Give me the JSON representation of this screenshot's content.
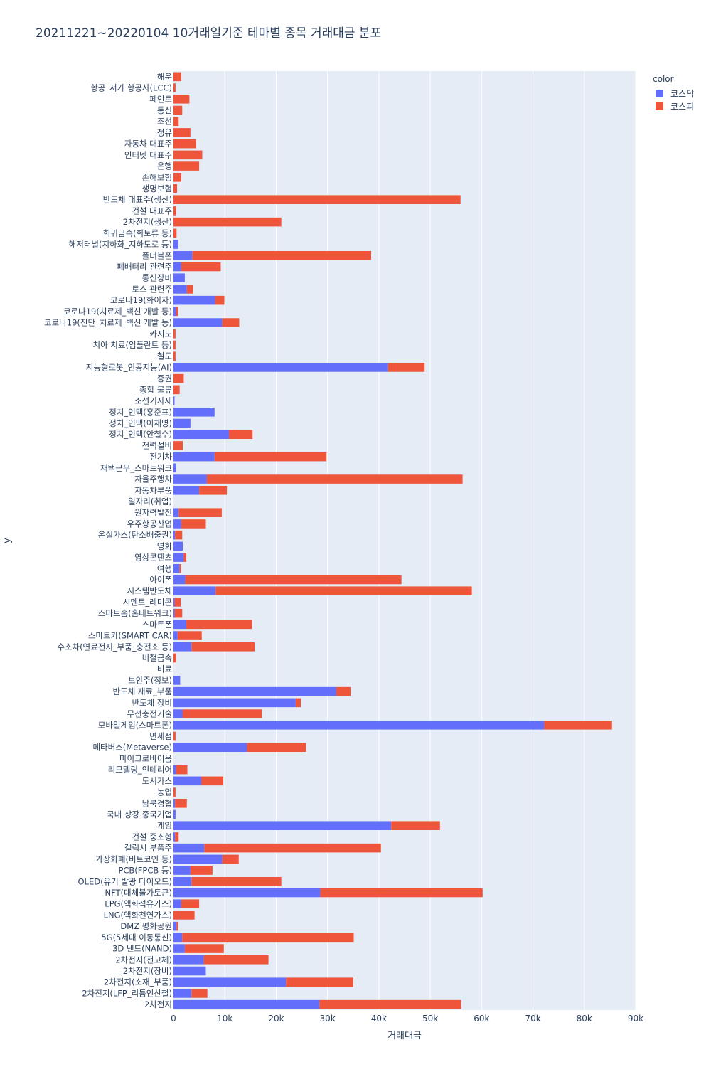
{
  "chart_data": {
    "type": "bar",
    "orientation": "horizontal",
    "barmode": "stack",
    "title": "20211221~20220104 10거래일기준 테마별 종목 거래대금 분포",
    "xlabel": "거래대금",
    "ylabel": "y",
    "xlim": [
      0,
      90000
    ],
    "x_ticks": [
      "0",
      "10k",
      "20k",
      "30k",
      "40k",
      "50k",
      "60k",
      "70k",
      "80k",
      "90k"
    ],
    "legend_title": "color",
    "legend_position": "top-right",
    "grid": true,
    "colors": {
      "코스닥": "#636efa",
      "코스피": "#ef553b",
      "background": "#e5ecf6"
    },
    "categories": [
      "해운",
      "항공_저가 항공사(LCC)",
      "페인트",
      "통신",
      "조선",
      "정유",
      "자동차 대표주",
      "인터넷 대표주",
      "은행",
      "손해보험",
      "생명보험",
      "반도체 대표주(생산)",
      "건설 대표주",
      "2차전지(생산)",
      "희귀금속(희토류 등)",
      "해저터널(지하화_지하도로 등)",
      "폴더블폰",
      "폐배터리 관련주",
      "통신장비",
      "토스 관련주",
      "코로나19(화이자)",
      "코로나19(치료제_백신 개발 등)",
      "코로나19(진단_치료제_백신 개발 등)",
      "카지노",
      "치아 치료(임플란트 등)",
      "철도",
      "지능형로봇_인공지능(AI)",
      "증권",
      "종합 물류",
      "조선기자재",
      "정치_인맥(홍준표)",
      "정치_인맥(이재명)",
      "정치_인맥(안철수)",
      "전력설비",
      "전기차",
      "재택근무_스마트워크",
      "자율주행차",
      "자동차부품",
      "일자리(취업)",
      "원자력발전",
      "우주항공산업",
      "온실가스(탄소배출권)",
      "영화",
      "영상콘텐츠",
      "여행",
      "아이폰",
      "시스템반도체",
      "시멘트_레미콘",
      "스마트홈(홈네트워크)",
      "스마트폰",
      "스마트카(SMART CAR)",
      "수소차(연료전지_부품_충전소 등)",
      "비철금속",
      "비료",
      "보안주(정보)",
      "반도체 재료_부품",
      "반도체 장비",
      "무선충전기술",
      "모바일게임(스마트폰)",
      "면세점",
      "메타버스(Metaverse)",
      "마이크로바이옴",
      "리모델링_인테리어",
      "도시가스",
      "농업",
      "남북경협",
      "국내 상장 중국기업",
      "게임",
      "건설 중소형",
      "갤럭시 부품주",
      "가상화폐(비트코인 등)",
      "PCB(FPCB 등)",
      "OLED(유기 발광 다이오드)",
      "NFT(대체불가토큰)",
      "LPG(액화석유가스)",
      "LNG(액화천연가스)",
      "DMZ 평화공원",
      "5G(5세대 이동통신)",
      "3D 낸드(NAND)",
      "2차전지(전고체)",
      "2차전지(장비)",
      "2차전지(소재_부품)",
      "2차전지(LFP_리튬인산철)",
      "2차전지"
    ],
    "series": [
      {
        "name": "코스닥",
        "values": [
          0,
          0,
          0,
          0,
          0,
          0,
          0,
          0,
          0,
          0,
          0,
          0,
          0,
          0,
          0,
          900,
          3700,
          1500,
          2200,
          2600,
          8100,
          500,
          9500,
          0,
          0,
          0,
          41800,
          0,
          0,
          200,
          8000,
          3300,
          10800,
          0,
          8000,
          500,
          6500,
          5000,
          0,
          1000,
          1500,
          300,
          1800,
          2000,
          1200,
          2300,
          8200,
          200,
          200,
          2500,
          800,
          3500,
          0,
          0,
          1300,
          31700,
          23800,
          1800,
          72200,
          0,
          14300,
          0,
          500,
          5400,
          0,
          300,
          400,
          42400,
          300,
          6000,
          9500,
          3300,
          3500,
          28600,
          1500,
          0,
          600,
          1700,
          2200,
          5900,
          6300,
          21900,
          3500,
          28400
        ]
      },
      {
        "name": "코스피",
        "values": [
          1500,
          400,
          3100,
          1700,
          1000,
          3300,
          4400,
          5600,
          5000,
          1500,
          700,
          55900,
          500,
          21000,
          600,
          0,
          34800,
          7700,
          0,
          1200,
          1800,
          400,
          3300,
          400,
          400,
          400,
          7100,
          2000,
          1200,
          0,
          0,
          0,
          4600,
          1800,
          21800,
          0,
          49800,
          5400,
          0,
          8400,
          4800,
          1400,
          0,
          500,
          300,
          42100,
          49900,
          1200,
          1500,
          12800,
          4700,
          12300,
          500,
          0,
          0,
          2800,
          1000,
          15400,
          13200,
          400,
          11500,
          0,
          2200,
          4300,
          400,
          2300,
          0,
          9500,
          700,
          34400,
          3200,
          4300,
          17500,
          31600,
          3500,
          4100,
          300,
          33400,
          7600,
          12600,
          0,
          13100,
          3100,
          27600
        ]
      }
    ]
  }
}
